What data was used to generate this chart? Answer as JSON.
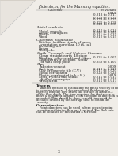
{
  "title": "fficients, n, for the Manning equation.",
  "col1_header": "Channel",
  "col2_header": "n values",
  "top_vals": [
    "0.016",
    "0.013 to 0.017",
    "0.020 to 0.030",
    "0.020 to 0.035",
    "0.021 to 0.030",
    "0.021 to 0.031"
  ],
  "metal_heading": "Metal conduits",
  "metal_rows": [
    [
      "Metal, smooth",
      "0.012 to 0.014"
    ],
    [
      "Metal, corrugated",
      "0.021 to 0.030"
    ],
    [
      "Plastic",
      "0.011 to 0.015"
    ],
    [
      "Wood",
      "0.012 to 0.015"
    ]
  ],
  "veg_heading": "Channels, Vegetated",
  "veg_rows": [
    [
      "Ditches, uniform stands of grass:",
      ""
    ],
    [
      "  vegetation more than 10 in. tall",
      ""
    ],
    [
      "Bermudagrass",
      ""
    ],
    [
      "Kudzu",
      ""
    ],
    [
      "Centipede",
      ""
    ]
  ],
  "earth_heading": "Earth Channels and Natural Streams",
  "earth_rows": [
    [
      "Clean, straight earth, 40 stage",
      ""
    ],
    [
      "Winding, some weeds and stones",
      "0.035 to 0.065"
    ],
    [
      "Sluggish river sections, weedy,",
      ""
    ],
    [
      "  or with deep pools",
      "0.050 to 0.100"
    ]
  ],
  "pipe_heading": "Pipe",
  "pipe_rows": [
    [
      "Asbestos-cement",
      "0.009"
    ],
    [
      "Cast iron",
      "0.013 to 0.015"
    ],
    [
      "Clay or concrete tile (C.V.)",
      "0.011 to 0.020"
    ],
    [
      "Metal corrugated",
      "0.020 to 0.024"
    ],
    [
      "Plastic, corrugated (a.k.a R.)",
      "0.019"
    ],
    [
      "Steel, riveted and spiral",
      "0.015 to 0.017"
    ],
    [
      "Vitrified sewer pipe",
      "0.013 to 0.015"
    ],
    [
      "Wroughtron",
      "0.015 to 0.017"
    ]
  ],
  "tracers_heading": "Tracers.",
  "tracers_text": "Another method of estimating the mean velocity of flow is by using tracers. A dye or colored fluid may be injected into the flow below the surface at about 0.3 of the flow depth. The time required for the tracer to move a measured distance from the point of injection is recorded. This should be done several times and the distance divided by the average time to obtain the velocity.",
  "currentmeters_heading": "Currentmeters.",
  "currentmeters_text": "Pointed meters can be used, where accurate point velocities within the flow are required. The flow rate can be obtained by measuring a series of",
  "page_num": "3",
  "bg_color": "#f0ede8",
  "text_color": "#1a1a1a",
  "fold_color": "#dbd7d0",
  "line_color": "#888888"
}
